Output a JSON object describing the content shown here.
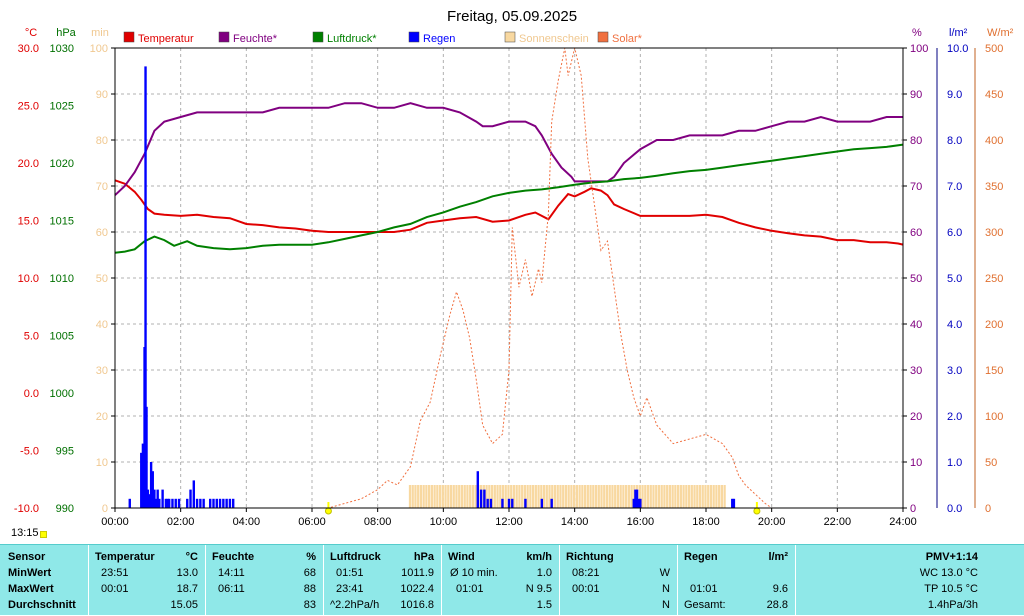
{
  "chart_data": {
    "type": "line",
    "title": "Freitag, 05.09.2025",
    "timestamp": "13:15",
    "x_ticks": [
      "00:00",
      "02:00",
      "04:00",
      "06:00",
      "08:00",
      "10:00",
      "12:00",
      "14:00",
      "16:00",
      "18:00",
      "20:00",
      "22:00",
      "24:00"
    ],
    "left_axes": [
      {
        "unit": "°C",
        "color": "#e00000",
        "range": [
          -10,
          30
        ],
        "ticks": [
          "30.0",
          "25.0",
          "20.0",
          "15.0",
          "10.0",
          "5.0",
          "0.0",
          "-5.0",
          "-10.0"
        ]
      },
      {
        "unit": "hPa",
        "color": "#007000",
        "range": [
          990,
          1030
        ],
        "ticks": [
          "1030",
          "1025",
          "1020",
          "1015",
          "1010",
          "1005",
          "1000",
          "995",
          "990"
        ]
      },
      {
        "unit": "min",
        "color": "#f0c890",
        "range": [
          0,
          100
        ],
        "ticks": [
          "100",
          "90",
          "80",
          "70",
          "60",
          "50",
          "40",
          "30",
          "20",
          "10",
          "0"
        ]
      }
    ],
    "right_axes": [
      {
        "unit": "%",
        "color": "#800080",
        "range": [
          0,
          100
        ],
        "ticks": [
          "100",
          "90",
          "80",
          "70",
          "60",
          "50",
          "40",
          "30",
          "20",
          "10",
          "0"
        ]
      },
      {
        "unit": "l/m²",
        "color": "#0000c0",
        "range": [
          0,
          10
        ],
        "ticks": [
          "10.0",
          "9.0",
          "8.0",
          "7.0",
          "6.0",
          "5.0",
          "4.0",
          "3.0",
          "2.0",
          "1.0",
          "0.0"
        ]
      },
      {
        "unit": "W/m²",
        "color": "#e07030",
        "range": [
          0,
          500
        ],
        "ticks": [
          "500",
          "450",
          "400",
          "350",
          "300",
          "250",
          "200",
          "150",
          "100",
          "50",
          "0"
        ]
      }
    ],
    "legend": [
      {
        "label": "Temperatur",
        "color": "#e00000"
      },
      {
        "label": "Feuchte*",
        "color": "#800080"
      },
      {
        "label": "Luftdruck*",
        "color": "#008000"
      },
      {
        "label": "Regen",
        "color": "#0000ff"
      },
      {
        "label": "Sonnenschein",
        "color": "#f8d8a0"
      },
      {
        "label": "Solar*",
        "color": "#f07040"
      }
    ],
    "series": [
      {
        "name": "Temperatur",
        "color": "#e00000",
        "axis": "°C",
        "x": [
          0,
          0.3,
          0.6,
          0.8,
          1.0,
          1.2,
          1.5,
          2.0,
          2.5,
          3.0,
          3.5,
          4.0,
          4.5,
          5.0,
          5.5,
          6.0,
          6.5,
          7.0,
          7.5,
          8.0,
          8.5,
          9.0,
          9.5,
          10.0,
          10.5,
          11.0,
          11.5,
          12.0,
          12.5,
          12.8,
          13.0,
          13.2,
          13.5,
          13.8,
          14.0,
          14.3,
          14.5,
          14.8,
          15.0,
          15.2,
          15.5,
          16.0,
          16.5,
          17.0,
          17.5,
          18.0,
          18.5,
          19.0,
          19.5,
          20.0,
          20.5,
          21.0,
          21.5,
          22.0,
          22.5,
          23.0,
          23.5,
          23.85,
          24.0
        ],
        "y": [
          18.5,
          18.2,
          17.5,
          16.8,
          16.0,
          15.6,
          15.5,
          15.4,
          15.5,
          15.3,
          15.2,
          14.7,
          14.6,
          14.4,
          14.3,
          14.1,
          14.0,
          14.0,
          14.0,
          14.0,
          14.0,
          14.2,
          14.8,
          15.0,
          15.2,
          15.3,
          14.9,
          15.0,
          15.5,
          15.7,
          15.4,
          15.1,
          16.3,
          17.3,
          17.1,
          17.5,
          17.8,
          17.6,
          17.2,
          16.4,
          16.0,
          15.4,
          15.4,
          15.4,
          15.4,
          15.5,
          15.3,
          14.8,
          14.4,
          14.1,
          13.9,
          13.7,
          13.6,
          13.3,
          13.3,
          13.1,
          13.1,
          13.0,
          12.9
        ]
      },
      {
        "name": "Feuchte*",
        "color": "#800080",
        "axis": "%",
        "x": [
          0,
          0.3,
          0.6,
          0.9,
          1.2,
          1.5,
          2.0,
          2.5,
          3.0,
          3.5,
          4.0,
          4.5,
          5.0,
          5.5,
          6.0,
          6.5,
          7.0,
          7.5,
          8.0,
          8.5,
          9.0,
          9.5,
          10.0,
          10.5,
          11.0,
          11.2,
          11.5,
          12.0,
          12.5,
          12.8,
          13.0,
          13.3,
          13.6,
          13.9,
          14.0,
          14.3,
          14.6,
          14.9,
          15.0,
          15.2,
          15.5,
          16.0,
          16.5,
          17.0,
          17.5,
          18.0,
          18.5,
          19.0,
          19.5,
          20.0,
          20.5,
          21.0,
          21.5,
          22.0,
          22.5,
          23.0,
          23.5,
          24.0
        ],
        "y": [
          68,
          70,
          73,
          77,
          82,
          84,
          85,
          86,
          86,
          86,
          86,
          86,
          87,
          87,
          87,
          87,
          88,
          88,
          87,
          87,
          88,
          87,
          87,
          86,
          84,
          83,
          83,
          84,
          84,
          83,
          81,
          77,
          74,
          72,
          71,
          71,
          71,
          71,
          71,
          72,
          75,
          78,
          80,
          80,
          81,
          81,
          81,
          82,
          82,
          83,
          84,
          84,
          85,
          84,
          84,
          84,
          85,
          85
        ]
      },
      {
        "name": "Luftdruck*",
        "color": "#008000",
        "axis": "hPa",
        "x": [
          0,
          0.3,
          0.6,
          0.9,
          1.2,
          1.5,
          1.8,
          2.2,
          2.5,
          3.0,
          3.5,
          4.0,
          4.5,
          5.0,
          5.5,
          6.0,
          6.5,
          7.0,
          7.5,
          8.0,
          8.5,
          9.0,
          9.5,
          10.0,
          10.5,
          11.0,
          11.5,
          12.0,
          12.5,
          13.0,
          13.5,
          14.0,
          14.5,
          15.0,
          15.5,
          16.0,
          16.5,
          17.0,
          17.5,
          18.0,
          18.5,
          19.0,
          19.5,
          20.0,
          20.5,
          21.0,
          21.5,
          22.0,
          22.5,
          23.0,
          23.5,
          24.0
        ],
        "y": [
          1012.2,
          1012.3,
          1012.5,
          1013.2,
          1013.6,
          1013.3,
          1012.8,
          1013.2,
          1012.8,
          1012.6,
          1012.5,
          1012.6,
          1012.8,
          1012.9,
          1012.9,
          1012.9,
          1013.1,
          1013.4,
          1013.7,
          1014.0,
          1014.4,
          1014.7,
          1015.3,
          1015.7,
          1016.2,
          1016.6,
          1017.1,
          1017.4,
          1017.6,
          1017.7,
          1017.9,
          1018.1,
          1018.3,
          1018.4,
          1018.6,
          1018.7,
          1018.9,
          1019.1,
          1019.3,
          1019.4,
          1019.6,
          1019.8,
          1020.0,
          1020.2,
          1020.4,
          1020.6,
          1020.8,
          1021.0,
          1021.2,
          1021.3,
          1021.4,
          1021.6
        ]
      },
      {
        "name": "Solar*",
        "color": "#f07040",
        "axis": "W/m²",
        "x": [
          0,
          6.5,
          7.0,
          7.5,
          8.0,
          8.3,
          8.6,
          9.0,
          9.3,
          9.6,
          9.9,
          10.2,
          10.4,
          10.6,
          10.8,
          11.0,
          11.2,
          11.5,
          11.8,
          12.0,
          12.1,
          12.3,
          12.5,
          12.7,
          12.9,
          13.0,
          13.2,
          13.3,
          13.5,
          13.7,
          13.8,
          14.0,
          14.2,
          14.4,
          14.6,
          14.8,
          15.0,
          15.2,
          15.4,
          15.6,
          15.8,
          16.0,
          16.2,
          16.5,
          17.0,
          17.5,
          18.0,
          18.5,
          18.8,
          19.0,
          19.2,
          19.5,
          19.8,
          20.0,
          20.2,
          24.0
        ],
        "y": [
          0,
          0,
          5,
          10,
          20,
          30,
          25,
          45,
          95,
          115,
          165,
          210,
          235,
          215,
          185,
          140,
          90,
          70,
          80,
          150,
          305,
          240,
          270,
          230,
          260,
          245,
          320,
          420,
          465,
          500,
          470,
          500,
          470,
          380,
          330,
          280,
          290,
          240,
          190,
          150,
          120,
          100,
          120,
          90,
          70,
          75,
          80,
          70,
          55,
          35,
          25,
          15,
          5,
          0,
          0,
          0
        ]
      }
    ],
    "rain_bars": {
      "name": "Regen",
      "color": "#0000ff",
      "axis": "l/m²",
      "x": [
        0.45,
        0.8,
        0.85,
        0.9,
        0.93,
        0.96,
        1.0,
        1.05,
        1.1,
        1.15,
        1.2,
        1.25,
        1.3,
        1.35,
        1.45,
        1.55,
        1.6,
        1.65,
        1.75,
        1.85,
        1.95,
        2.2,
        2.3,
        2.4,
        2.5,
        2.6,
        2.7,
        2.9,
        3.0,
        3.1,
        3.2,
        3.3,
        3.4,
        3.5,
        3.6,
        11.05,
        11.15,
        11.25,
        11.35,
        11.45,
        11.8,
        12.0,
        12.1,
        12.5,
        13.0,
        13.3,
        15.8,
        15.85,
        15.9,
        15.95,
        16.0,
        18.8,
        18.85
      ],
      "y": [
        0.2,
        1.2,
        1.4,
        3.5,
        9.6,
        2.2,
        0.4,
        0.3,
        1.0,
        0.8,
        0.4,
        0.2,
        0.4,
        0.2,
        0.4,
        0.2,
        0.2,
        0.2,
        0.2,
        0.2,
        0.2,
        0.2,
        0.4,
        0.6,
        0.2,
        0.2,
        0.2,
        0.2,
        0.2,
        0.2,
        0.2,
        0.2,
        0.2,
        0.2,
        0.2,
        0.8,
        0.4,
        0.4,
        0.2,
        0.2,
        0.2,
        0.2,
        0.2,
        0.2,
        0.2,
        0.2,
        0.2,
        0.4,
        0.4,
        0.2,
        0.2,
        0.2,
        0.2
      ]
    },
    "sunshine_bars": {
      "name": "Sonnenschein",
      "color": "#f8d8a0",
      "axis": "min",
      "x_range": [
        8.95,
        18.55
      ],
      "value": 5
    },
    "markers": {
      "sunrise": 6.5,
      "sunset": 19.55
    }
  },
  "table": {
    "headers": {
      "sensor": "Sensor",
      "temperatur": "Temperatur",
      "temp_unit": "°C",
      "feuchte": "Feuchte",
      "feuchte_unit": "%",
      "luftdruck": "Luftdruck",
      "luft_unit": "hPa",
      "wind": "Wind",
      "wind_unit": "km/h",
      "richtung": "Richtung",
      "regen": "Regen",
      "regen_unit": "l/m²",
      "pmv": "PMV+1:14"
    },
    "rows": [
      {
        "label": "MinWert",
        "t_time": "23:51",
        "t_val": "13.0",
        "f_time": "14:11",
        "f_val": "68",
        "l_time": "01:51",
        "l_val": "1011.9",
        "w_time": "Ø 10 min.",
        "w_val": "1.0",
        "r_time": "08:21",
        "r_val": "W",
        "g_time": "",
        "g_val": "",
        "p_val": "WC 13.0 °C"
      },
      {
        "label": "MaxWert",
        "t_time": "00:01",
        "t_val": "18.7",
        "f_time": "06:11",
        "f_val": "88",
        "l_time": "23:41",
        "l_val": "1022.4",
        "w_time": "01:01",
        "w_val": "N 9.5",
        "r_time": "00:01",
        "r_val": "N",
        "g_time": "01:01",
        "g_val": "9.6",
        "p_val": "TP 10.5 °C"
      },
      {
        "label": "Durchschnitt",
        "t_time": "",
        "t_val": "15.05",
        "f_time": "",
        "f_val": "83",
        "l_time": "^2.2hPa/h",
        "l_val": "1016.8",
        "w_time": "",
        "w_val": "1.5",
        "r_time": "",
        "r_val": "N",
        "g_time": "Gesamt:",
        "g_val": "28.8",
        "p_val": "1.4hPa/3h"
      }
    ]
  }
}
